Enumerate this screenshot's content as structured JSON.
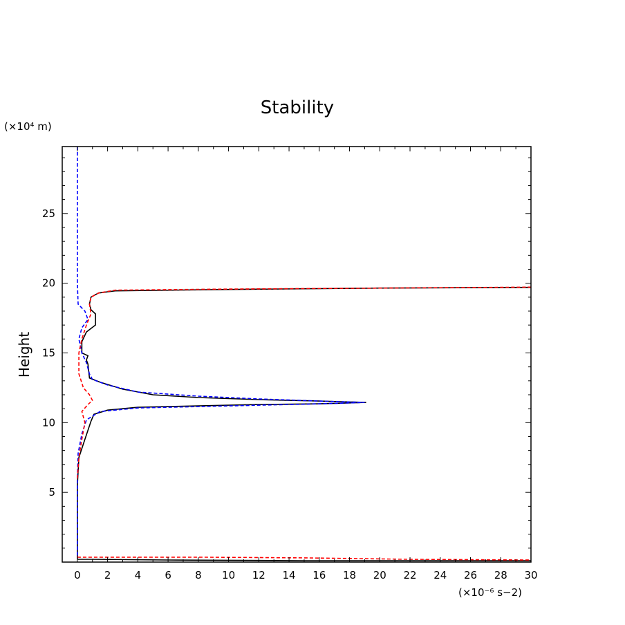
{
  "chart_data": {
    "type": "line",
    "title": "Stability",
    "ylabel": "Height",
    "xlabel": "",
    "y_units": "(×10⁴ m)",
    "x_units": "(×10⁻⁶ s−2)",
    "xlim": [
      -1,
      30
    ],
    "ylim": [
      0,
      29.8
    ],
    "x_ticks": [
      0,
      2,
      4,
      6,
      8,
      10,
      12,
      14,
      16,
      18,
      20,
      22,
      24,
      26,
      28,
      30
    ],
    "y_ticks": [
      5,
      10,
      15,
      20,
      25
    ],
    "grid": false,
    "colors": {
      "solid": "#000000",
      "blue": "#0000ff",
      "red": "#ff0000"
    },
    "series": [
      {
        "style": "solid",
        "color": "#000000",
        "points": [
          [
            0,
            0.2
          ],
          [
            1,
            0.2
          ],
          [
            6,
            0.15
          ],
          [
            15,
            0.1
          ],
          [
            30,
            0.1
          ]
        ]
      },
      {
        "style": "solid",
        "color": "#000000",
        "points": [
          [
            0,
            0.25
          ],
          [
            0,
            5.5
          ],
          [
            0.1,
            7.5
          ],
          [
            0.5,
            8.8
          ],
          [
            0.9,
            10.1
          ],
          [
            1.1,
            10.6
          ],
          [
            2,
            10.9
          ],
          [
            4,
            11.1
          ],
          [
            8,
            11.2
          ],
          [
            12,
            11.3
          ],
          [
            16,
            11.35
          ],
          [
            19.1,
            11.45
          ],
          [
            16,
            11.55
          ],
          [
            12,
            11.65
          ],
          [
            8,
            11.8
          ],
          [
            5,
            12.0
          ],
          [
            3,
            12.4
          ],
          [
            1.5,
            12.9
          ],
          [
            0.8,
            13.2
          ],
          [
            0.7,
            14.2
          ],
          [
            0.6,
            14.5
          ],
          [
            0.7,
            14.8
          ],
          [
            0.3,
            15.0
          ],
          [
            0.3,
            15.8
          ],
          [
            0.6,
            16.5
          ],
          [
            1.2,
            17.0
          ],
          [
            1.2,
            17.8
          ],
          [
            0.9,
            18.1
          ],
          [
            0.8,
            18.5
          ],
          [
            0.9,
            19.0
          ],
          [
            1.4,
            19.3
          ],
          [
            2.5,
            19.45
          ],
          [
            10,
            19.55
          ],
          [
            20,
            19.65
          ],
          [
            30,
            19.7
          ]
        ]
      },
      {
        "style": "dashed",
        "color": "#0000ff",
        "points": [
          [
            0,
            29.8
          ],
          [
            0,
            20
          ],
          [
            0.05,
            18.5
          ],
          [
            0.5,
            18.0
          ],
          [
            0.7,
            17.4
          ],
          [
            0.3,
            16.8
          ],
          [
            0.1,
            16.0
          ],
          [
            0.3,
            15.0
          ],
          [
            0.6,
            14.3
          ],
          [
            0.8,
            13.5
          ],
          [
            1,
            13.1
          ],
          [
            2,
            12.7
          ],
          [
            4,
            12.2
          ],
          [
            8,
            11.9
          ],
          [
            12,
            11.7
          ],
          [
            16,
            11.55
          ],
          [
            19,
            11.45
          ],
          [
            16,
            11.35
          ],
          [
            12,
            11.25
          ],
          [
            8,
            11.15
          ],
          [
            4,
            11.05
          ],
          [
            1.5,
            10.8
          ],
          [
            0.6,
            10.2
          ],
          [
            0.3,
            9.2
          ],
          [
            0.05,
            7.8
          ],
          [
            0,
            6.0
          ],
          [
            0,
            0.3
          ]
        ]
      },
      {
        "style": "dashed",
        "color": "#ff0000",
        "points": [
          [
            0,
            0.35
          ],
          [
            8,
            0.35
          ],
          [
            15,
            0.3
          ],
          [
            22,
            0.2
          ],
          [
            30,
            0.15
          ]
        ]
      },
      {
        "style": "dashed",
        "color": "#ff0000",
        "points": [
          [
            0,
            6.0
          ],
          [
            0.1,
            7.5
          ],
          [
            0.3,
            8.8
          ],
          [
            0.5,
            10.0
          ],
          [
            0.3,
            10.8
          ],
          [
            0.7,
            11.3
          ],
          [
            1.0,
            11.6
          ],
          [
            0.8,
            12.0
          ],
          [
            0.4,
            12.5
          ],
          [
            0.1,
            13.5
          ],
          [
            0.1,
            15.0
          ],
          [
            0.3,
            16.0
          ],
          [
            0.6,
            17.0
          ],
          [
            0.9,
            17.8
          ],
          [
            0.8,
            18.5
          ],
          [
            0.9,
            19.0
          ],
          [
            1.4,
            19.3
          ],
          [
            2.5,
            19.5
          ],
          [
            10,
            19.58
          ],
          [
            20,
            19.65
          ],
          [
            30,
            19.72
          ]
        ]
      }
    ]
  }
}
